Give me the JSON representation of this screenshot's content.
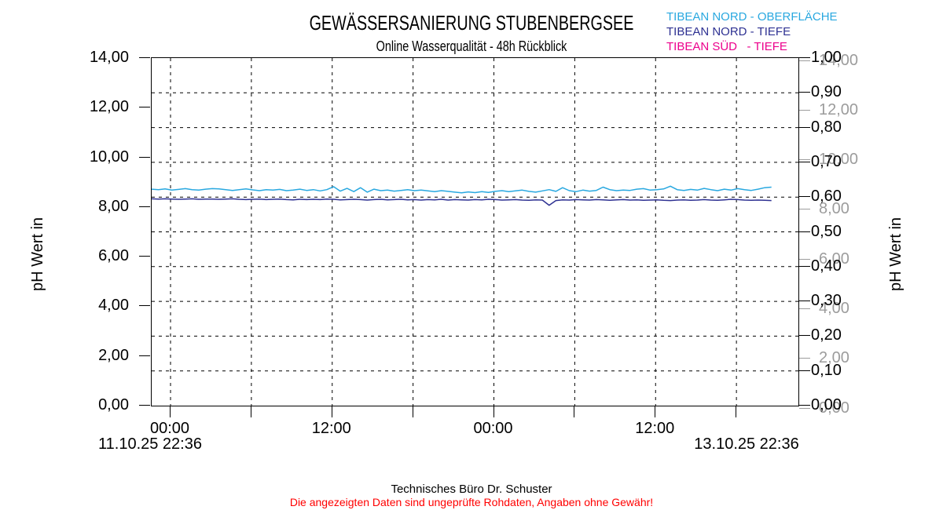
{
  "header": {
    "title": "GEWÄSSERSANIERUNG STUBENBERGSEE",
    "subtitle": "Online Wasserqualität - 48h Rückblick"
  },
  "legend": {
    "items": [
      {
        "label": "TIBEAN NORD - OBERFLÄCHE",
        "color": "#29a8e0"
      },
      {
        "label": "TIBEAN NORD - TIEFE",
        "color": "#2e3192"
      },
      {
        "label": "TIBEAN SÜD   - TIEFE",
        "color": "#ec008c"
      }
    ]
  },
  "footer": {
    "company": "Technisches Büro Dr. Schuster",
    "disclaimer": "Die angezeigten Daten sind ungeprüfte Rohdaten, Angaben ohne Gewähr!",
    "disclaimer_color": "#ff0000"
  },
  "chart_data": {
    "type": "line",
    "title": "GEWÄSSERSANIERUNG STUBENBERGSEE",
    "subtitle": "Online Wasserqualität - 48h Rückblick",
    "grid": {
      "style": "dashed",
      "horizontal_step_right_axis": 0.1,
      "vertical_step_hours": 6
    },
    "x_axis": {
      "start_label": "11.10.25 22:36",
      "end_label": "13.10.25 22:36",
      "span_hours": 48,
      "first_tick_offset_hours": 1.4,
      "tick_interval_hours": 6,
      "tick_labels": [
        "00:00",
        "",
        "12:00",
        "",
        "00:00",
        "",
        "12:00",
        ""
      ]
    },
    "y_axis_left": {
      "label": "pH Wert in",
      "min": 0,
      "max": 14,
      "tick_step": 2,
      "ticks": [
        "14,00",
        "12,00",
        "10,00",
        "8,00",
        "6,00",
        "4,00",
        "2,00",
        "0,00"
      ],
      "color": "#000000"
    },
    "y_axis_right": {
      "min": 0,
      "max": 1,
      "tick_step": 0.1,
      "ticks": [
        "1,00",
        "0,90",
        "0,80",
        "0,70",
        "0,60",
        "0,50",
        "0,40",
        "0,30",
        "0,20",
        "0,10",
        "0,00"
      ],
      "color": "#000000"
    },
    "y_axis_right_secondary": {
      "label": "pH Wert in",
      "min": 0,
      "max": 14,
      "tick_step": 2,
      "ticks": [
        "14,00",
        "12,00",
        "10,00",
        "8,00",
        "6,00",
        "4,00",
        "2,00",
        "0,00"
      ],
      "color": "#9c9c9c"
    },
    "series": [
      {
        "name": "TIBEAN NORD - OBERFLÄCHE",
        "color": "#29a8e0",
        "unit": "pH",
        "start_offset_hours": 0,
        "sample_interval_hours": 0.5,
        "values": [
          8.72,
          8.7,
          8.73,
          8.68,
          8.71,
          8.74,
          8.7,
          8.68,
          8.72,
          8.74,
          8.73,
          8.7,
          8.67,
          8.7,
          8.73,
          8.69,
          8.66,
          8.7,
          8.68,
          8.71,
          8.66,
          8.68,
          8.72,
          8.67,
          8.7,
          8.65,
          8.7,
          8.82,
          8.64,
          8.75,
          8.62,
          8.78,
          8.6,
          8.72,
          8.66,
          8.68,
          8.64,
          8.67,
          8.7,
          8.66,
          8.68,
          8.65,
          8.62,
          8.66,
          8.63,
          8.6,
          8.57,
          8.61,
          8.58,
          8.62,
          8.59,
          8.63,
          8.66,
          8.62,
          8.65,
          8.68,
          8.63,
          8.6,
          8.65,
          8.7,
          8.63,
          8.78,
          8.66,
          8.62,
          8.68,
          8.64,
          8.67,
          8.8,
          8.7,
          8.66,
          8.68,
          8.67,
          8.72,
          8.74,
          8.68,
          8.7,
          8.73,
          8.84,
          8.7,
          8.67,
          8.71,
          8.68,
          8.75,
          8.7,
          8.66,
          8.72,
          8.68,
          8.74,
          8.7,
          8.67,
          8.72,
          8.78,
          8.8
        ]
      },
      {
        "name": "TIBEAN NORD - TIEFE",
        "color": "#2e3192",
        "unit": "pH",
        "start_offset_hours": 0,
        "sample_interval_hours": 0.5,
        "values": [
          8.33,
          8.32,
          8.33,
          8.32,
          8.31,
          8.32,
          8.33,
          8.31,
          8.32,
          8.32,
          8.31,
          8.32,
          8.33,
          8.31,
          8.3,
          8.31,
          8.32,
          8.3,
          8.31,
          8.32,
          8.3,
          8.29,
          8.31,
          8.3,
          8.31,
          8.3,
          8.32,
          8.31,
          8.29,
          8.3,
          8.31,
          8.3,
          8.28,
          8.3,
          8.31,
          8.29,
          8.3,
          8.31,
          8.29,
          8.3,
          8.28,
          8.3,
          8.29,
          8.31,
          8.28,
          8.3,
          8.29,
          8.28,
          8.3,
          8.29,
          8.31,
          8.3,
          8.28,
          8.29,
          8.3,
          8.28,
          8.27,
          8.29,
          8.28,
          8.07,
          8.26,
          8.29,
          8.28,
          8.3,
          8.29,
          8.28,
          8.3,
          8.29,
          8.27,
          8.29,
          8.3,
          8.28,
          8.29,
          8.27,
          8.28,
          8.29,
          8.27,
          8.26,
          8.28,
          8.29,
          8.27,
          8.28,
          8.3,
          8.28,
          8.27,
          8.29,
          8.31,
          8.3,
          8.28,
          8.27,
          8.28,
          8.27,
          8.26
        ]
      },
      {
        "name": "TIBEAN SÜD - TIEFE",
        "color": "#ec008c",
        "unit": "pH",
        "start_offset_hours": 0,
        "sample_interval_hours": 0.5,
        "values": []
      }
    ]
  }
}
